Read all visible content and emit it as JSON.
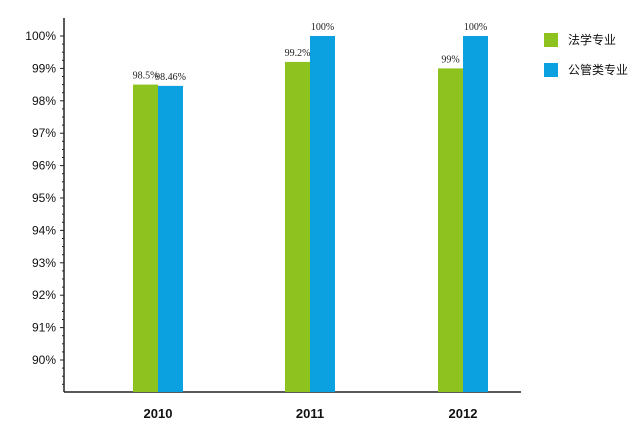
{
  "chart_data": {
    "type": "bar",
    "categories": [
      "2010",
      "2011",
      "2012"
    ],
    "series": [
      {
        "name": "法学专业",
        "color": "#8dc21f",
        "values": [
          98.5,
          99.2,
          99.0
        ],
        "labels": [
          "98.5%",
          "99.2%",
          "99%"
        ]
      },
      {
        "name": "公管类专业",
        "color": "#0ba0e0",
        "values": [
          98.46,
          100.0,
          100.0
        ],
        "labels": [
          "98.46%",
          "100%",
          "100%"
        ]
      }
    ],
    "ylim": [
      89,
      100.3
    ],
    "yticks": [
      90,
      91,
      92,
      93,
      94,
      95,
      96,
      97,
      98,
      99,
      100
    ],
    "ytick_labels": [
      "90%",
      "91%",
      "92%",
      "93%",
      "94%",
      "95%",
      "96%",
      "97%",
      "98%",
      "99%",
      "100%"
    ],
    "legend_position": "top-right",
    "grid": false
  }
}
